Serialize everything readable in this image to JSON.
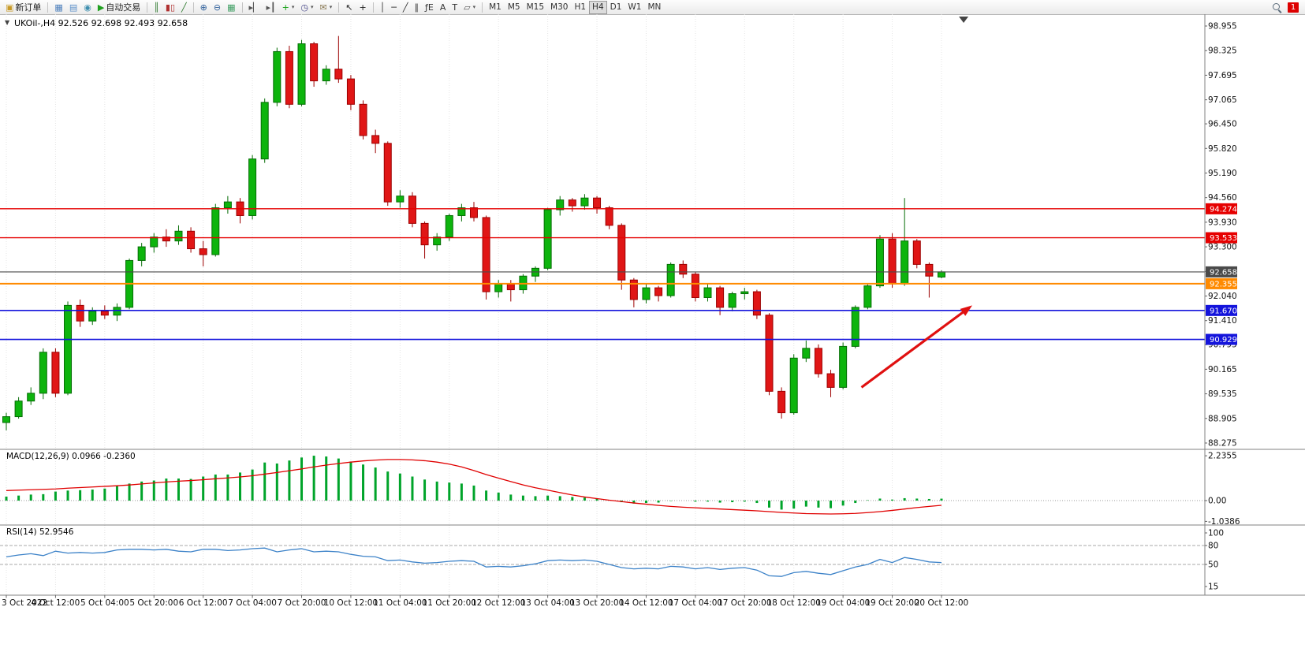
{
  "toolbar": {
    "caret_glyph": "▾",
    "groups": [
      {
        "name": "trade",
        "items": [
          {
            "name": "new-order-button",
            "glyph": "▣",
            "glyph_color": "#c89a28",
            "label": "新订单"
          }
        ]
      },
      {
        "name": "windows",
        "items": [
          {
            "name": "market-watch-button",
            "glyph": "▦",
            "glyph_color": "#4f81bd"
          },
          {
            "name": "data-window-button",
            "glyph": "▤",
            "glyph_color": "#5b8fc9"
          },
          {
            "name": "navigator-button",
            "glyph": "◉",
            "glyph_color": "#3f8faf"
          },
          {
            "name": "autotrading-button",
            "glyph": "▶",
            "glyph_color": "#1fa01f",
            "label": "自动交易"
          }
        ]
      },
      {
        "name": "chart-types",
        "items": [
          {
            "name": "bar-chart-button",
            "glyph": "║",
            "glyph_color": "#2f7a2f"
          },
          {
            "name": "candlestick-chart-button",
            "glyph": "▮▯",
            "glyph_color": "#b03030"
          },
          {
            "name": "line-chart-button",
            "glyph": "╱",
            "glyph_color": "#2f7a2f"
          }
        ]
      },
      {
        "name": "zoom",
        "items": [
          {
            "name": "zoom-in-button",
            "glyph": "⊕",
            "glyph_color": "#31619c"
          },
          {
            "name": "zoom-out-button",
            "glyph": "⊖",
            "glyph_color": "#31619c"
          },
          {
            "name": "tile-windows-button",
            "glyph": "▦",
            "glyph_color": "#3f9f63"
          }
        ]
      },
      {
        "name": "tools",
        "items": [
          {
            "name": "auto-scroll-button",
            "glyph": "▸▏",
            "glyph_color": "#555555"
          },
          {
            "name": "chart-shift-button",
            "glyph": "▸┃",
            "glyph_color": "#555555"
          },
          {
            "name": "indicators-button",
            "glyph": "+",
            "glyph_color": "#0f9f0f",
            "caret": true
          },
          {
            "name": "periods-button",
            "glyph": "◷",
            "glyph_color": "#4a4a8a",
            "caret": true
          },
          {
            "name": "templates-button",
            "glyph": "✉",
            "glyph_color": "#8a7a55",
            "caret": true
          }
        ]
      },
      {
        "name": "cursor",
        "items": [
          {
            "name": "cursor-button",
            "glyph": "↖",
            "glyph_color": "#222222"
          },
          {
            "name": "crosshair-button",
            "glyph": "+",
            "glyph_color": "#222222"
          }
        ]
      },
      {
        "name": "objects",
        "items": [
          {
            "name": "vertical-line-button",
            "glyph": "│",
            "glyph_color": "#333333"
          },
          {
            "name": "horizontal-line-button",
            "glyph": "─",
            "glyph_color": "#333333"
          },
          {
            "name": "trendline-button",
            "glyph": "╱",
            "glyph_color": "#333333"
          },
          {
            "name": "equidistant-channel-button",
            "glyph": "∥",
            "glyph_color": "#333333"
          },
          {
            "name": "fibonacci-button",
            "glyph": "ƒE",
            "glyph_color": "#333333"
          },
          {
            "name": "text-button",
            "glyph": "A",
            "glyph_color": "#333333"
          },
          {
            "name": "text-label-button",
            "glyph": "T",
            "glyph_color": "#333333"
          },
          {
            "name": "shapes-button",
            "glyph": "▱",
            "glyph_color": "#555555",
            "caret": true
          }
        ]
      },
      {
        "name": "timeframes",
        "items": [
          {
            "name": "timeframe-m1-button",
            "label": "M1"
          },
          {
            "name": "timeframe-m5-button",
            "label": "M5"
          },
          {
            "name": "timeframe-m15-button",
            "label": "M15"
          },
          {
            "name": "timeframe-m30-button",
            "label": "M30"
          },
          {
            "name": "timeframe-h1-button",
            "label": "H1"
          },
          {
            "name": "timeframe-h4-button",
            "label": "H4",
            "active": true
          },
          {
            "name": "timeframe-d1-button",
            "label": "D1"
          },
          {
            "name": "timeframe-w1-button",
            "label": "W1"
          },
          {
            "name": "timeframe-mn-button",
            "label": "MN"
          }
        ]
      }
    ],
    "right": [
      {
        "name": "search-button",
        "type": "magnifier"
      },
      {
        "name": "alert-badge",
        "type": "badge",
        "label": "1",
        "color": "#dd0000"
      }
    ]
  },
  "chart_data": {
    "type": "candlestick",
    "symbol_title": "UKOil-,H4 92.526 92.698 92.493 92.658",
    "timeframe_active": "H4",
    "current_price": "92.658",
    "icons": {
      "one_click_trading": "▼"
    },
    "bull_color": "#0db40d",
    "bull_border": "#056d05",
    "bear_color": "#e01616",
    "bear_border": "#9c0000",
    "y_axis_ticks": [
      "98.955",
      "98.325",
      "97.695",
      "97.065",
      "96.450",
      "95.820",
      "95.190",
      "94.560",
      "93.930",
      "93.300",
      "92.670",
      "92.040",
      "91.410",
      "90.795",
      "90.165",
      "89.535",
      "88.905",
      "88.275"
    ],
    "x_axis_labels": [
      "3 Oct 2022",
      "4 Oct 12:00",
      "5 Oct 04:00",
      "5 Oct 20:00",
      "6 Oct 12:00",
      "7 Oct 04:00",
      "7 Oct 20:00",
      "10 Oct 12:00",
      "11 Oct 04:00",
      "11 Oct 20:00",
      "12 Oct 12:00",
      "13 Oct 04:00",
      "13 Oct 20:00",
      "14 Oct 12:00",
      "17 Oct 04:00",
      "17 Oct 20:00",
      "18 Oct 12:00",
      "19 Oct 04:00",
      "19 Oct 20:00",
      "20 Oct 12:00"
    ],
    "bars_per_label": 4,
    "candles": [
      [
        88.8,
        89.05,
        88.6,
        88.95
      ],
      [
        88.95,
        89.45,
        88.9,
        89.35
      ],
      [
        89.35,
        89.7,
        89.25,
        89.55
      ],
      [
        89.55,
        90.7,
        89.4,
        90.6
      ],
      [
        90.6,
        90.7,
        89.45,
        89.55
      ],
      [
        89.55,
        91.9,
        89.5,
        91.8
      ],
      [
        91.8,
        91.95,
        91.25,
        91.4
      ],
      [
        91.4,
        91.75,
        91.3,
        91.65
      ],
      [
        91.65,
        91.8,
        91.45,
        91.55
      ],
      [
        91.55,
        91.85,
        91.4,
        91.75
      ],
      [
        91.75,
        93.0,
        91.7,
        92.95
      ],
      [
        92.95,
        93.4,
        92.8,
        93.3
      ],
      [
        93.3,
        93.65,
        93.15,
        93.55
      ],
      [
        93.55,
        93.75,
        93.3,
        93.45
      ],
      [
        93.45,
        93.85,
        93.35,
        93.7
      ],
      [
        93.7,
        93.8,
        93.15,
        93.25
      ],
      [
        93.25,
        93.45,
        92.8,
        93.1
      ],
      [
        93.1,
        94.4,
        93.05,
        94.3
      ],
      [
        94.3,
        94.6,
        94.15,
        94.45
      ],
      [
        94.45,
        94.55,
        93.9,
        94.1
      ],
      [
        94.1,
        95.65,
        94.0,
        95.55
      ],
      [
        95.55,
        97.1,
        95.45,
        97.0
      ],
      [
        97.0,
        98.4,
        96.9,
        98.3
      ],
      [
        98.3,
        98.45,
        96.85,
        96.95
      ],
      [
        96.95,
        98.6,
        96.9,
        98.5
      ],
      [
        98.5,
        98.55,
        97.4,
        97.55
      ],
      [
        97.55,
        97.95,
        97.45,
        97.85
      ],
      [
        97.85,
        98.7,
        97.5,
        97.6
      ],
      [
        97.6,
        97.7,
        96.8,
        96.95
      ],
      [
        96.95,
        97.05,
        96.05,
        96.15
      ],
      [
        96.15,
        96.3,
        95.7,
        95.95
      ],
      [
        95.95,
        96.0,
        94.35,
        94.45
      ],
      [
        94.45,
        94.75,
        94.3,
        94.6
      ],
      [
        94.6,
        94.7,
        93.8,
        93.9
      ],
      [
        93.9,
        93.95,
        93.0,
        93.35
      ],
      [
        93.35,
        93.65,
        93.2,
        93.55
      ],
      [
        93.55,
        94.15,
        93.45,
        94.1
      ],
      [
        94.1,
        94.4,
        93.95,
        94.3
      ],
      [
        94.3,
        94.45,
        93.95,
        94.05
      ],
      [
        94.05,
        94.1,
        91.95,
        92.15
      ],
      [
        92.15,
        92.45,
        92.0,
        92.35
      ],
      [
        92.35,
        92.45,
        91.9,
        92.2
      ],
      [
        92.2,
        92.6,
        92.1,
        92.55
      ],
      [
        92.55,
        92.8,
        92.4,
        92.75
      ],
      [
        92.75,
        94.3,
        92.7,
        94.25
      ],
      [
        94.25,
        94.6,
        94.1,
        94.5
      ],
      [
        94.5,
        94.55,
        94.2,
        94.35
      ],
      [
        94.35,
        94.65,
        94.25,
        94.55
      ],
      [
        94.55,
        94.6,
        94.15,
        94.3
      ],
      [
        94.3,
        94.35,
        93.75,
        93.85
      ],
      [
        93.85,
        93.9,
        92.2,
        92.45
      ],
      [
        92.45,
        92.5,
        91.75,
        91.95
      ],
      [
        91.95,
        92.35,
        91.85,
        92.25
      ],
      [
        92.25,
        92.3,
        91.9,
        92.05
      ],
      [
        92.05,
        92.9,
        92.0,
        92.85
      ],
      [
        92.85,
        92.95,
        92.5,
        92.6
      ],
      [
        92.6,
        92.65,
        91.9,
        92.0
      ],
      [
        92.0,
        92.35,
        91.9,
        92.25
      ],
      [
        92.25,
        92.3,
        91.55,
        91.75
      ],
      [
        91.75,
        92.15,
        91.65,
        92.1
      ],
      [
        92.1,
        92.25,
        91.95,
        92.15
      ],
      [
        92.15,
        92.2,
        91.45,
        91.55
      ],
      [
        91.55,
        91.6,
        89.5,
        89.6
      ],
      [
        89.6,
        89.7,
        88.9,
        89.05
      ],
      [
        89.05,
        90.55,
        89.0,
        90.45
      ],
      [
        90.45,
        90.9,
        90.35,
        90.7
      ],
      [
        90.7,
        90.8,
        89.95,
        90.05
      ],
      [
        90.05,
        90.15,
        89.45,
        89.7
      ],
      [
        89.7,
        90.85,
        89.65,
        90.75
      ],
      [
        90.75,
        91.8,
        90.7,
        91.75
      ],
      [
        91.75,
        92.35,
        91.7,
        92.3
      ],
      [
        92.3,
        93.6,
        92.25,
        93.5
      ],
      [
        93.5,
        93.65,
        92.25,
        92.35
      ],
      [
        92.35,
        94.55,
        92.3,
        93.45
      ],
      [
        93.45,
        93.5,
        92.75,
        92.85
      ],
      [
        92.85,
        92.9,
        92.0,
        92.55
      ],
      [
        92.526,
        92.698,
        92.493,
        92.658
      ]
    ],
    "hlines": [
      {
        "price": 94.274,
        "label": "94.274",
        "color": "#e60000",
        "width": 1.4
      },
      {
        "price": 93.533,
        "label": "93.533",
        "color": "#e60000",
        "width": 1.4
      },
      {
        "price": 92.658,
        "label": "92.658",
        "color": "#4a4a4a",
        "width": 1.1
      },
      {
        "price": 92.355,
        "label": "92.355",
        "color": "#ff8a00",
        "width": 2.0
      },
      {
        "price": 91.67,
        "label": "91.670",
        "color": "#1414dc",
        "width": 1.6
      },
      {
        "price": 90.929,
        "label": "90.929",
        "color": "#1414dc",
        "width": 1.6
      }
    ],
    "arrow": {
      "from_bar": 69.5,
      "from_price": 89.7,
      "to_bar": 78.5,
      "to_price": 91.8,
      "color": "#e01010"
    },
    "shift_marker_bar": 77.8,
    "macd": {
      "label": "MACD(12,26,9) 0.0966 -0.2360",
      "histogram_color": "#00a42a",
      "signal_color": "#e00000",
      "scale": [
        {
          "label": "2.2355",
          "value": 2.2355
        },
        {
          "label": "0.00",
          "value": 0
        },
        {
          "label": "-1.0386",
          "value": -1.0386
        }
      ],
      "histogram": [
        0.2,
        0.25,
        0.3,
        0.32,
        0.45,
        0.5,
        0.52,
        0.55,
        0.6,
        0.75,
        0.85,
        0.95,
        1.0,
        1.1,
        1.1,
        1.08,
        1.2,
        1.3,
        1.3,
        1.4,
        1.55,
        1.9,
        1.85,
        2.0,
        2.15,
        2.24,
        2.2,
        2.1,
        1.95,
        1.8,
        1.65,
        1.45,
        1.35,
        1.2,
        1.05,
        0.95,
        0.9,
        0.85,
        0.75,
        0.5,
        0.4,
        0.3,
        0.25,
        0.22,
        0.25,
        0.22,
        0.18,
        0.15,
        0.1,
        0.02,
        -0.08,
        -0.15,
        -0.12,
        -0.1,
        -0.02,
        0.0,
        -0.05,
        -0.05,
        -0.1,
        -0.08,
        -0.05,
        -0.12,
        -0.35,
        -0.45,
        -0.4,
        -0.3,
        -0.35,
        -0.38,
        -0.25,
        -0.12,
        0.02,
        0.1,
        0.05,
        0.12,
        0.1,
        0.08,
        0.0966
      ],
      "signal": [
        0.5,
        0.52,
        0.54,
        0.56,
        0.58,
        0.62,
        0.65,
        0.68,
        0.71,
        0.74,
        0.78,
        0.83,
        0.88,
        0.93,
        0.97,
        1.0,
        1.04,
        1.09,
        1.13,
        1.18,
        1.24,
        1.32,
        1.4,
        1.49,
        1.58,
        1.68,
        1.77,
        1.85,
        1.92,
        1.98,
        2.02,
        2.05,
        2.05,
        2.03,
        1.99,
        1.92,
        1.82,
        1.68,
        1.5,
        1.3,
        1.12,
        0.95,
        0.78,
        0.64,
        0.52,
        0.4,
        0.28,
        0.18,
        0.1,
        0.02,
        -0.05,
        -0.12,
        -0.18,
        -0.24,
        -0.29,
        -0.33,
        -0.36,
        -0.39,
        -0.42,
        -0.45,
        -0.48,
        -0.51,
        -0.55,
        -0.59,
        -0.62,
        -0.65,
        -0.66,
        -0.67,
        -0.66,
        -0.64,
        -0.6,
        -0.55,
        -0.49,
        -0.42,
        -0.35,
        -0.29,
        -0.236
      ]
    },
    "rsi": {
      "label": "RSI(14) 52.9546",
      "line_color": "#3c82c8",
      "scale": [
        {
          "label": "100",
          "value": 100
        },
        {
          "label": "80",
          "value": 80
        },
        {
          "label": "50",
          "value": 50
        },
        {
          "label": "15",
          "value": 15
        }
      ],
      "levels": [
        80,
        50
      ],
      "values": [
        62,
        65,
        67,
        64,
        71,
        68,
        69,
        68,
        69,
        73,
        74,
        74,
        73,
        74,
        71,
        70,
        74,
        74,
        72,
        73,
        75,
        76,
        70,
        73,
        75,
        70,
        71,
        70,
        66,
        63,
        62,
        56,
        57,
        54,
        52,
        53,
        55,
        56,
        55,
        46,
        47,
        46,
        48,
        51,
        56,
        57,
        56,
        57,
        55,
        50,
        45,
        43,
        44,
        43,
        47,
        46,
        43,
        45,
        42,
        44,
        45,
        41,
        32,
        31,
        37,
        39,
        36,
        34,
        40,
        46,
        50,
        58,
        53,
        61,
        58,
        54,
        52.95
      ]
    }
  }
}
